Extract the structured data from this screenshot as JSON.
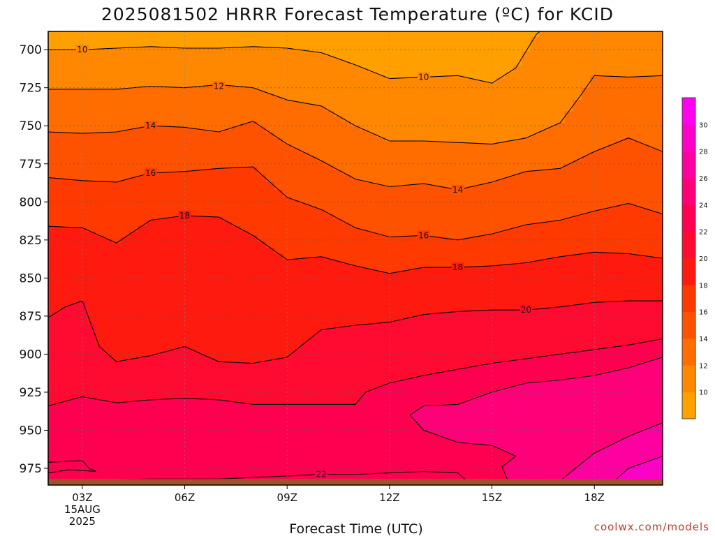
{
  "chart_data": {
    "type": "heatmap",
    "title": "2025081502 HRRR Forecast Temperature (ºC) for KCID",
    "xlabel": "Forecast Time (UTC)",
    "ylabel": "",
    "credit": "coolwx.com/models",
    "x_ticks": [
      {
        "hour": 3,
        "lines": [
          "03Z",
          "15AUG",
          "2025"
        ]
      },
      {
        "hour": 6,
        "lines": [
          "06Z"
        ]
      },
      {
        "hour": 9,
        "lines": [
          "09Z"
        ]
      },
      {
        "hour": 12,
        "lines": [
          "12Z"
        ]
      },
      {
        "hour": 15,
        "lines": [
          "15Z"
        ]
      },
      {
        "hour": 18,
        "lines": [
          "18Z"
        ]
      }
    ],
    "xlim": [
      2,
      20
    ],
    "y_ticks": [
      700,
      725,
      750,
      775,
      800,
      825,
      850,
      875,
      900,
      925,
      950,
      975
    ],
    "ylim": [
      688,
      986
    ],
    "ground_level_mb": 982,
    "colorbar": {
      "ticks": [
        10,
        12,
        14,
        16,
        18,
        20,
        22,
        24,
        26,
        28,
        30
      ],
      "range": [
        8,
        32
      ],
      "colors": [
        "#ff9f00",
        "#ff8800",
        "#ff6d00",
        "#ff5200",
        "#ff3a00",
        "#ff1a10",
        "#ff0a30",
        "#ff0050",
        "#ff0078",
        "#ff00a0",
        "#ff00c8",
        "#ff00f0"
      ]
    },
    "ground_color": "#a0522d",
    "contour_levels": [
      10,
      12,
      14,
      16,
      18,
      20,
      22
    ],
    "contours": [
      {
        "level": 10,
        "points": [
          [
            2,
            700
          ],
          [
            3,
            700
          ],
          [
            4,
            699
          ],
          [
            5,
            698
          ],
          [
            6,
            699
          ],
          [
            7,
            699
          ],
          [
            8,
            698
          ],
          [
            9,
            699
          ],
          [
            10,
            702
          ],
          [
            11,
            710
          ],
          [
            12,
            719
          ],
          [
            13,
            718
          ],
          [
            14,
            717
          ],
          [
            15,
            722
          ],
          [
            15.7,
            712
          ],
          [
            16.3,
            690
          ],
          [
            16.6,
            684
          ]
        ]
      },
      {
        "level": 12,
        "points": [
          [
            2,
            726
          ],
          [
            4,
            726
          ],
          [
            5,
            724
          ],
          [
            6,
            725
          ],
          [
            7,
            723
          ],
          [
            8,
            725
          ],
          [
            9,
            733
          ],
          [
            10,
            737
          ],
          [
            11,
            750
          ],
          [
            12,
            760
          ],
          [
            13,
            760
          ],
          [
            14,
            761
          ],
          [
            15,
            762
          ],
          [
            16,
            758
          ],
          [
            17,
            748
          ],
          [
            17.6,
            730
          ],
          [
            18,
            717
          ],
          [
            19,
            718
          ],
          [
            20,
            717
          ]
        ]
      },
      {
        "level": 14,
        "points": [
          [
            2,
            754
          ],
          [
            3,
            755
          ],
          [
            4,
            754
          ],
          [
            5,
            750
          ],
          [
            6,
            751
          ],
          [
            7,
            754
          ],
          [
            8,
            747
          ],
          [
            9,
            762
          ],
          [
            10,
            773
          ],
          [
            11,
            785
          ],
          [
            12,
            790
          ],
          [
            13,
            788
          ],
          [
            14,
            792
          ],
          [
            15,
            787
          ],
          [
            16,
            780
          ],
          [
            17,
            778
          ],
          [
            18,
            767
          ],
          [
            19,
            758
          ],
          [
            20,
            767
          ]
        ]
      },
      {
        "level": 16,
        "points": [
          [
            2,
            784
          ],
          [
            3,
            786
          ],
          [
            4,
            787
          ],
          [
            5,
            781
          ],
          [
            6,
            780
          ],
          [
            7,
            778
          ],
          [
            8,
            777
          ],
          [
            9,
            797
          ],
          [
            10,
            805
          ],
          [
            11,
            817
          ],
          [
            12,
            823
          ],
          [
            13,
            822
          ],
          [
            14,
            825
          ],
          [
            15,
            821
          ],
          [
            16,
            815
          ],
          [
            17,
            812
          ],
          [
            18,
            806
          ],
          [
            19,
            801
          ],
          [
            20,
            808
          ]
        ]
      },
      {
        "level": 18,
        "points": [
          [
            2,
            816
          ],
          [
            3,
            817
          ],
          [
            4,
            827
          ],
          [
            5,
            812
          ],
          [
            6,
            809
          ],
          [
            7,
            810
          ],
          [
            8,
            822
          ],
          [
            9,
            838
          ],
          [
            10,
            836
          ],
          [
            11,
            842
          ],
          [
            12,
            847
          ],
          [
            13,
            843
          ],
          [
            14,
            843
          ],
          [
            15,
            842
          ],
          [
            16,
            840
          ],
          [
            17,
            836
          ],
          [
            18,
            833
          ],
          [
            19,
            834
          ],
          [
            20,
            837
          ]
        ]
      },
      {
        "level": 20,
        "points": [
          [
            2,
            876
          ],
          [
            2.5,
            869
          ],
          [
            3,
            865
          ],
          [
            3.5,
            895
          ],
          [
            4,
            905
          ],
          [
            5,
            901
          ],
          [
            6,
            895
          ],
          [
            7,
            905
          ],
          [
            8,
            906
          ],
          [
            9,
            902
          ],
          [
            10,
            884
          ],
          [
            11,
            881
          ],
          [
            12,
            879
          ],
          [
            13,
            874
          ],
          [
            14,
            872
          ],
          [
            15,
            871
          ],
          [
            16,
            871
          ],
          [
            17,
            869
          ],
          [
            18,
            866
          ],
          [
            19,
            865
          ],
          [
            20,
            865
          ]
        ]
      },
      {
        "level": 22,
        "points": [
          [
            2,
            934
          ],
          [
            3,
            928
          ],
          [
            4,
            932
          ],
          [
            5,
            930
          ],
          [
            6,
            929
          ],
          [
            7,
            930
          ],
          [
            8,
            933
          ],
          [
            9,
            933
          ],
          [
            10,
            933
          ],
          [
            11,
            933
          ],
          [
            11.3,
            925
          ],
          [
            12,
            919
          ],
          [
            13,
            914
          ],
          [
            14,
            910
          ],
          [
            15,
            906
          ],
          [
            16,
            903
          ],
          [
            17,
            900
          ],
          [
            18,
            897
          ],
          [
            19,
            894
          ],
          [
            20,
            890
          ]
        ]
      },
      {
        "level": 22,
        "points": [
          [
            2,
            983
          ],
          [
            5,
            982
          ],
          [
            7,
            982
          ],
          [
            9,
            980
          ],
          [
            10,
            979
          ],
          [
            11,
            979
          ],
          [
            12,
            978
          ],
          [
            13,
            977
          ],
          [
            14,
            978
          ],
          [
            14.2,
            982
          ],
          [
            13.8,
            984
          ],
          [
            12,
            985
          ],
          [
            9,
            985
          ],
          [
            7,
            985
          ],
          [
            5,
            985
          ],
          [
            2,
            985
          ]
        ]
      },
      {
        "level": 24,
        "points": [
          [
            12.6,
            940
          ],
          [
            13,
            934
          ],
          [
            14,
            933
          ],
          [
            15,
            925
          ],
          [
            16,
            919
          ],
          [
            17,
            917
          ],
          [
            18,
            914
          ],
          [
            19,
            909
          ],
          [
            20,
            902
          ]
        ]
      },
      {
        "level": 24,
        "points": [
          [
            12.6,
            940
          ],
          [
            13,
            950
          ],
          [
            14,
            958
          ],
          [
            15,
            960
          ],
          [
            15.7,
            967
          ],
          [
            15.3,
            974
          ],
          [
            15.5,
            985
          ]
        ]
      },
      {
        "level": 26,
        "points": [
          [
            16.9,
            985
          ],
          [
            18,
            965
          ],
          [
            19,
            954
          ],
          [
            20,
            945
          ]
        ]
      },
      {
        "level": 28,
        "points": [
          [
            18.5,
            985
          ],
          [
            19,
            975
          ],
          [
            20,
            967
          ]
        ]
      },
      {
        "level": 22,
        "points": [
          [
            2,
            971
          ],
          [
            3,
            970
          ],
          [
            3.2,
            975
          ],
          [
            3.4,
            977
          ],
          [
            2.6,
            976
          ],
          [
            2,
            978
          ]
        ]
      }
    ],
    "contour_labels": [
      {
        "text": "10",
        "hour": 3,
        "mb": 700
      },
      {
        "text": "10",
        "hour": 13,
        "mb": 718
      },
      {
        "text": "12",
        "hour": 7,
        "mb": 724
      },
      {
        "text": "14",
        "hour": 5,
        "mb": 750
      },
      {
        "text": "14",
        "hour": 14,
        "mb": 792
      },
      {
        "text": "16",
        "hour": 5,
        "mb": 781
      },
      {
        "text": "16",
        "hour": 13,
        "mb": 822
      },
      {
        "text": "18",
        "hour": 6,
        "mb": 809
      },
      {
        "text": "18",
        "hour": 14,
        "mb": 843
      },
      {
        "text": "20",
        "hour": 16,
        "mb": 871
      },
      {
        "text": "22",
        "hour": 10,
        "mb": 979
      }
    ]
  }
}
